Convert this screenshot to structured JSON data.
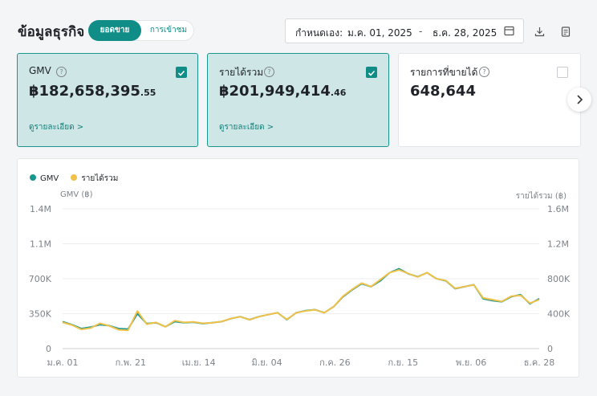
{
  "header": {
    "title": "ข้อมูลธุรกิจ",
    "toggle": {
      "active": "ยอดขาย",
      "inactive": "การเข้าชม"
    },
    "date_range": {
      "label": "กำหนดเอง:",
      "start": "ม.ค. 01, 2025",
      "separator": "-",
      "end": "ธ.ค. 28, 2025"
    }
  },
  "metrics": [
    {
      "name": "GMV",
      "value": "฿182,658,395",
      "decimal": ".55",
      "link": "ดูรายละเอียด >",
      "checked": true
    },
    {
      "name": "รายได้รวม",
      "value": "฿201,949,414",
      "decimal": ".46",
      "link": "ดูรายละเอียด >",
      "checked": true
    },
    {
      "name": "รายการที่ขายได้",
      "value": "648,644",
      "decimal": "",
      "link": "",
      "checked": false
    }
  ],
  "colors": {
    "accent": "#0f8d86",
    "gmv": "#1a9690",
    "revenue": "#f0c24a"
  },
  "icons": [
    "help-icon",
    "checkbox-icon",
    "calendar-icon",
    "download-icon",
    "report-icon",
    "chevron-right-icon"
  ],
  "chart_data": {
    "type": "line",
    "legend": [
      "GMV",
      "รายได้รวม"
    ],
    "legend_position": "top-left",
    "ylabel_left": "GMV (฿)",
    "ylabel_right": "รายได้รวม (฿)",
    "ylim_left": [
      0,
      1400000
    ],
    "ylim_right": [
      0,
      1600000
    ],
    "yticks_left": [
      "0",
      "350K",
      "700K",
      "1.1M",
      "1.4M"
    ],
    "yticks_right": [
      "0",
      "400K",
      "800K",
      "1.2M",
      "1.6M"
    ],
    "xticks": [
      "ม.ค. 01",
      "ก.พ. 21",
      "เม.ย. 14",
      "มิ.ย. 04",
      "ก.ค. 26",
      "ก.ย. 15",
      "พ.ย. 06",
      "ธ.ค. 28"
    ],
    "grid": true,
    "x_unit": "week",
    "series": [
      {
        "name": "GMV",
        "axis": "left",
        "values": [
          270000,
          240000,
          200000,
          215000,
          240000,
          230000,
          200000,
          195000,
          350000,
          250000,
          260000,
          220000,
          270000,
          260000,
          265000,
          250000,
          260000,
          270000,
          300000,
          320000,
          290000,
          320000,
          340000,
          360000,
          290000,
          360000,
          380000,
          390000,
          360000,
          420000,
          520000,
          590000,
          650000,
          620000,
          680000,
          760000,
          800000,
          750000,
          720000,
          760000,
          700000,
          680000,
          600000,
          620000,
          640000,
          500000,
          480000,
          470000,
          520000,
          540000,
          450000,
          500000
        ]
      },
      {
        "name": "รายได้รวม",
        "axis": "right",
        "values": [
          300000,
          270000,
          220000,
          235000,
          290000,
          260000,
          215000,
          210000,
          430000,
          280000,
          300000,
          250000,
          320000,
          300000,
          305000,
          290000,
          295000,
          310000,
          345000,
          365000,
          330000,
          365000,
          390000,
          410000,
          335000,
          410000,
          430000,
          445000,
          410000,
          480000,
          600000,
          680000,
          750000,
          710000,
          790000,
          870000,
          900000,
          860000,
          820000,
          870000,
          800000,
          780000,
          690000,
          710000,
          730000,
          580000,
          560000,
          540000,
          600000,
          610000,
          520000,
          560000
        ]
      }
    ]
  }
}
